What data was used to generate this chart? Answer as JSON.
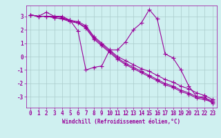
{
  "xlabel": "Windchill (Refroidissement éolien,°C)",
  "bg_color": "#cff0f0",
  "line_color": "#990099",
  "grid_color": "#aacccc",
  "series": [
    [
      3.1,
      3.0,
      3.3,
      3.0,
      3.0,
      2.7,
      1.9,
      -1.0,
      -0.8,
      -0.7,
      0.5,
      0.5,
      1.1,
      2.0,
      2.5,
      3.5,
      2.8,
      0.2,
      -0.1,
      -1.0,
      -2.2,
      -3.0,
      -3.0,
      -3.5
    ],
    [
      3.1,
      3.0,
      3.0,
      3.0,
      2.9,
      2.7,
      2.6,
      2.3,
      1.5,
      1.0,
      0.5,
      0.0,
      -0.3,
      -0.6,
      -0.9,
      -1.1,
      -1.4,
      -1.7,
      -1.9,
      -2.2,
      -2.4,
      -2.7,
      -2.9,
      -3.2
    ],
    [
      3.1,
      3.0,
      3.0,
      2.9,
      2.8,
      2.7,
      2.5,
      2.2,
      1.4,
      0.9,
      0.4,
      -0.1,
      -0.5,
      -0.8,
      -1.1,
      -1.4,
      -1.7,
      -2.0,
      -2.2,
      -2.5,
      -2.7,
      -3.0,
      -3.1,
      -3.3
    ],
    [
      3.1,
      3.0,
      3.0,
      2.9,
      2.8,
      2.6,
      2.5,
      2.1,
      1.3,
      0.8,
      0.3,
      -0.2,
      -0.6,
      -0.9,
      -1.2,
      -1.5,
      -1.8,
      -2.1,
      -2.3,
      -2.6,
      -2.8,
      -3.1,
      -3.2,
      -3.4
    ]
  ],
  "xmin": -0.5,
  "xmax": 23.5,
  "ymin": -3.8,
  "ymax": 3.8,
  "yticks": [
    -3,
    -2,
    -1,
    0,
    1,
    2,
    3
  ],
  "xticks": [
    0,
    1,
    2,
    3,
    4,
    5,
    6,
    7,
    8,
    9,
    10,
    11,
    12,
    13,
    14,
    15,
    16,
    17,
    18,
    19,
    20,
    21,
    22,
    23
  ],
  "marker": "+",
  "markersize": 4,
  "linewidth": 0.8,
  "label_fontsize": 5.5,
  "tick_fontsize": 5.5
}
